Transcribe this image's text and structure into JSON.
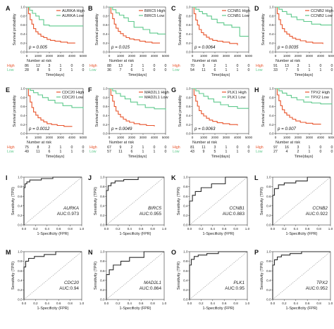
{
  "km_common": {
    "ylabel": "Survival probability",
    "xlabel": "Time(days)",
    "risk_title": "Number at risk",
    "y_ticks": [
      "0.0",
      "0.2",
      "0.4",
      "0.6",
      "0.8",
      "1.0"
    ],
    "x_ticks": [
      "0",
      "1000",
      "2000",
      "3000",
      "4000",
      "5000"
    ],
    "high_row": "High",
    "low_row": "Low",
    "high_color": "#e8542b",
    "low_color": "#5ec98c"
  },
  "roc_common": {
    "ylabel": "Sensitivity (TPR)",
    "xlabel": "1-Specificity (FPR)",
    "ticks": [
      "0.0",
      "0.2",
      "0.4",
      "0.6",
      "0.8",
      "1.0"
    ],
    "curve_color": "#2b2b2b",
    "diag_color": "#9a9a9a"
  },
  "chart_data": [
    {
      "panel": "A",
      "type": "line",
      "gene": "AURKA",
      "legend": [
        "AURKA High",
        "AURKA Low"
      ],
      "p_value": "p = 0.005",
      "xlim": [
        0,
        5000
      ],
      "ylim": [
        0,
        1
      ],
      "risk_high": [
        "86",
        "12",
        "3",
        "1",
        "0",
        "0"
      ],
      "risk_low": [
        "28",
        "8",
        "5",
        "2",
        "1",
        "0"
      ],
      "series": [
        {
          "group": "High",
          "x": [
            0,
            150,
            300,
            450,
            600,
            800,
            1000,
            1250,
            1500,
            1800,
            2100,
            2500,
            3000,
            3600,
            4300
          ],
          "y": [
            1,
            0.85,
            0.72,
            0.62,
            0.52,
            0.45,
            0.4,
            0.35,
            0.32,
            0.28,
            0.26,
            0.24,
            0.22,
            0.2,
            0.2
          ]
        },
        {
          "group": "Low",
          "x": [
            0,
            250,
            500,
            800,
            1100,
            1500,
            2000,
            5000
          ],
          "y": [
            1,
            0.93,
            0.86,
            0.8,
            0.72,
            0.6,
            0.58,
            0.58
          ]
        }
      ]
    },
    {
      "panel": "B",
      "type": "line",
      "gene": "BIRC5",
      "legend": [
        "BIRC5 High",
        "BIRC5 Low"
      ],
      "p_value": "p = 0.015",
      "xlim": [
        0,
        5000
      ],
      "ylim": [
        0,
        1
      ],
      "risk_high": [
        "88",
        "13",
        "2",
        "1",
        "0",
        "0"
      ],
      "risk_low": [
        "36",
        "7",
        "6",
        "1",
        "0",
        "0"
      ],
      "series": [
        {
          "group": "High",
          "x": [
            0,
            150,
            300,
            450,
            600,
            800,
            1000,
            1250,
            1500,
            1800,
            2200,
            2700,
            3200,
            3800,
            4500
          ],
          "y": [
            1,
            0.86,
            0.74,
            0.62,
            0.53,
            0.46,
            0.41,
            0.36,
            0.32,
            0.29,
            0.27,
            0.24,
            0.22,
            0.2,
            0.2
          ]
        },
        {
          "group": "Low",
          "x": [
            0,
            300,
            600,
            900,
            1300,
            1700,
            2200,
            3000,
            3600,
            4300,
            5000
          ],
          "y": [
            1,
            0.94,
            0.87,
            0.82,
            0.76,
            0.68,
            0.55,
            0.5,
            0.42,
            0.4,
            0.4
          ]
        }
      ]
    },
    {
      "panel": "C",
      "type": "line",
      "gene": "CCNB1",
      "legend": [
        "CCNB1 High",
        "CCNB1 Low"
      ],
      "p_value": "p = 0.0064",
      "xlim": [
        0,
        5000
      ],
      "ylim": [
        0,
        1
      ],
      "risk_high": [
        "70",
        "9",
        "2",
        "1",
        "0",
        "0"
      ],
      "risk_low": [
        "54",
        "11",
        "6",
        "1",
        "1",
        "0"
      ],
      "series": [
        {
          "group": "High",
          "x": [
            0,
            150,
            300,
            450,
            600,
            800,
            1000,
            1250,
            1500,
            1800,
            2200,
            2700,
            3300,
            4000
          ],
          "y": [
            1,
            0.85,
            0.71,
            0.6,
            0.5,
            0.43,
            0.38,
            0.33,
            0.29,
            0.26,
            0.24,
            0.22,
            0.19,
            0.15
          ]
        },
        {
          "group": "Low",
          "x": [
            0,
            300,
            600,
            900,
            1300,
            1700,
            2200,
            2800,
            3500,
            4200,
            5000
          ],
          "y": [
            1,
            0.95,
            0.9,
            0.85,
            0.8,
            0.73,
            0.65,
            0.6,
            0.55,
            0.35,
            0.35
          ]
        }
      ]
    },
    {
      "panel": "D",
      "type": "line",
      "gene": "CCNB2",
      "legend": [
        "CCNB2 High",
        "CCNB2 Low"
      ],
      "p_value": "p = 0.0035",
      "xlim": [
        0,
        5000
      ],
      "ylim": [
        0,
        1
      ],
      "risk_high": [
        "91",
        "13",
        "3",
        "1",
        "0",
        "0"
      ],
      "risk_low": [
        "33",
        "7",
        "5",
        "1",
        "1",
        "0"
      ],
      "series": [
        {
          "group": "High",
          "x": [
            0,
            150,
            300,
            450,
            600,
            800,
            1000,
            1250,
            1500,
            1800,
            2200,
            2700,
            3300,
            4200
          ],
          "y": [
            1,
            0.85,
            0.72,
            0.61,
            0.52,
            0.45,
            0.4,
            0.35,
            0.31,
            0.28,
            0.25,
            0.22,
            0.2,
            0.18
          ]
        },
        {
          "group": "Low",
          "x": [
            0,
            300,
            600,
            1000,
            1400,
            1900,
            2500,
            3200,
            4000,
            5000
          ],
          "y": [
            1,
            0.95,
            0.9,
            0.84,
            0.78,
            0.72,
            0.68,
            0.62,
            0.6,
            0.6
          ]
        }
      ]
    },
    {
      "panel": "E",
      "type": "line",
      "gene": "CDC20",
      "legend": [
        "CDC20 High",
        "CDC20 Low"
      ],
      "p_value": "p = 0.0012",
      "xlim": [
        0,
        5000
      ],
      "ylim": [
        0,
        1
      ],
      "risk_high": [
        "75",
        "8",
        "2",
        "1",
        "0",
        "0"
      ],
      "risk_low": [
        "49",
        "11",
        "6",
        "1",
        "1",
        "0"
      ],
      "series": [
        {
          "group": "High",
          "x": [
            0,
            150,
            300,
            450,
            600,
            800,
            1000,
            1250,
            1500,
            1800,
            2200,
            2700,
            3300,
            4000
          ],
          "y": [
            1,
            0.84,
            0.7,
            0.58,
            0.48,
            0.41,
            0.35,
            0.3,
            0.26,
            0.22,
            0.2,
            0.18,
            0.16,
            0.15
          ]
        },
        {
          "group": "Low",
          "x": [
            0,
            300,
            600,
            1000,
            1400,
            1900,
            2500,
            3200,
            4000,
            5000
          ],
          "y": [
            1,
            0.96,
            0.91,
            0.86,
            0.8,
            0.74,
            0.68,
            0.62,
            0.58,
            0.55
          ]
        }
      ]
    },
    {
      "panel": "F",
      "type": "line",
      "gene": "MAD2L1",
      "legend": [
        "MAD2L1 High",
        "MAD2L1 Low"
      ],
      "p_value": "p = 0.0049",
      "xlim": [
        0,
        5000
      ],
      "ylim": [
        0,
        1
      ],
      "risk_high": [
        "67",
        "9",
        "2",
        "1",
        "0",
        "0"
      ],
      "risk_low": [
        "57",
        "11",
        "6",
        "1",
        "1",
        "0"
      ],
      "series": [
        {
          "group": "High",
          "x": [
            0,
            150,
            300,
            450,
            600,
            800,
            1000,
            1250,
            1500,
            1800,
            2200,
            2700,
            3300,
            4000
          ],
          "y": [
            1,
            0.85,
            0.72,
            0.6,
            0.5,
            0.43,
            0.37,
            0.32,
            0.28,
            0.25,
            0.22,
            0.2,
            0.18,
            0.16
          ]
        },
        {
          "group": "Low",
          "x": [
            0,
            300,
            600,
            1000,
            1400,
            1900,
            2500,
            3200,
            4000,
            5000
          ],
          "y": [
            1,
            0.95,
            0.89,
            0.83,
            0.77,
            0.7,
            0.64,
            0.58,
            0.55,
            0.52
          ]
        }
      ]
    },
    {
      "panel": "G",
      "type": "line",
      "gene": "PLK1",
      "legend": [
        "PLK1 High",
        "PLK1 Low"
      ],
      "p_value": "p = 0.0063",
      "xlim": [
        0,
        5000
      ],
      "ylim": [
        0,
        1
      ],
      "risk_high": [
        "81",
        "11",
        "3",
        "1",
        "0",
        "0"
      ],
      "risk_low": [
        "43",
        "9",
        "5",
        "1",
        "1",
        "0"
      ],
      "series": [
        {
          "group": "High",
          "x": [
            0,
            150,
            300,
            450,
            600,
            800,
            1000,
            1250,
            1500,
            1800,
            2200,
            2700,
            3300,
            4000
          ],
          "y": [
            1,
            0.85,
            0.72,
            0.61,
            0.51,
            0.44,
            0.39,
            0.34,
            0.3,
            0.27,
            0.24,
            0.22,
            0.2,
            0.18
          ]
        },
        {
          "group": "Low",
          "x": [
            0,
            300,
            600,
            1000,
            1400,
            1900,
            2500,
            3200,
            4000,
            5000
          ],
          "y": [
            1,
            0.95,
            0.89,
            0.83,
            0.77,
            0.7,
            0.64,
            0.6,
            0.56,
            0.55
          ]
        }
      ]
    },
    {
      "panel": "H",
      "type": "line",
      "gene": "TPX2",
      "legend": [
        "TPX2 High",
        "TPX2 Low"
      ],
      "p_value": "p = 0.007",
      "xlim": [
        0,
        5000
      ],
      "ylim": [
        0,
        1
      ],
      "risk_high": [
        "97",
        "16",
        "3",
        "1",
        "0",
        "0"
      ],
      "risk_low": [
        "27",
        "4",
        "2",
        "1",
        "0",
        "0"
      ],
      "series": [
        {
          "group": "High",
          "x": [
            0,
            150,
            300,
            450,
            600,
            800,
            1000,
            1250,
            1500,
            1800,
            2200,
            2700,
            3300,
            4000
          ],
          "y": [
            1,
            0.86,
            0.73,
            0.62,
            0.53,
            0.46,
            0.41,
            0.36,
            0.32,
            0.28,
            0.25,
            0.23,
            0.21,
            0.2
          ]
        },
        {
          "group": "Low",
          "x": [
            0,
            300,
            600,
            1000,
            1400,
            1900,
            2500,
            3200,
            4000,
            5000
          ],
          "y": [
            1,
            0.95,
            0.9,
            0.85,
            0.8,
            0.75,
            0.7,
            0.68,
            0.66,
            0.65
          ]
        }
      ]
    },
    {
      "panel": "I",
      "type": "line",
      "gene": "AURKA",
      "auc": "AUC:0.973",
      "xlim": [
        0,
        1
      ],
      "ylim": [
        0,
        1
      ],
      "fpr": [
        0,
        0,
        0.02,
        0.02,
        0.05,
        0.05,
        0.1,
        0.1,
        0.3,
        0.3,
        0.5,
        0.5,
        1
      ],
      "tpr": [
        0,
        0.78,
        0.78,
        0.86,
        0.86,
        0.9,
        0.9,
        0.94,
        0.94,
        0.97,
        0.97,
        1,
        1
      ]
    },
    {
      "panel": "J",
      "type": "line",
      "gene": "BIRC5",
      "auc": "AUC:0.955",
      "xlim": [
        0,
        1
      ],
      "ylim": [
        0,
        1
      ],
      "fpr": [
        0,
        0,
        0.03,
        0.03,
        0.08,
        0.08,
        0.15,
        0.15,
        0.3,
        0.3,
        0.55,
        0.55,
        1
      ],
      "tpr": [
        0,
        0.72,
        0.72,
        0.82,
        0.82,
        0.88,
        0.88,
        0.92,
        0.92,
        0.95,
        0.95,
        1,
        1
      ]
    },
    {
      "panel": "K",
      "type": "line",
      "gene": "CCNB1",
      "auc": "AUC:0.883",
      "xlim": [
        0,
        1
      ],
      "ylim": [
        0,
        1
      ],
      "fpr": [
        0,
        0,
        0.05,
        0.05,
        0.1,
        0.1,
        0.2,
        0.2,
        0.38,
        0.38,
        0.62,
        0.62,
        1
      ],
      "tpr": [
        0,
        0.5,
        0.5,
        0.62,
        0.62,
        0.7,
        0.7,
        0.78,
        0.78,
        0.86,
        0.86,
        1,
        1
      ]
    },
    {
      "panel": "L",
      "type": "line",
      "gene": "CCNB2",
      "auc": "AUC:0.922",
      "xlim": [
        0,
        1
      ],
      "ylim": [
        0,
        1
      ],
      "fpr": [
        0,
        0,
        0.03,
        0.03,
        0.1,
        0.1,
        0.2,
        0.2,
        0.4,
        0.4,
        0.6,
        0.6,
        1
      ],
      "tpr": [
        0,
        0.62,
        0.62,
        0.76,
        0.76,
        0.84,
        0.84,
        0.88,
        0.88,
        0.92,
        0.92,
        1,
        1
      ]
    },
    {
      "panel": "M",
      "type": "line",
      "gene": "CDC20",
      "auc": "AUC:0.94",
      "xlim": [
        0,
        1
      ],
      "ylim": [
        0,
        1
      ],
      "fpr": [
        0,
        0,
        0.03,
        0.03,
        0.08,
        0.08,
        0.18,
        0.18,
        0.35,
        0.35,
        0.55,
        0.55,
        1
      ],
      "tpr": [
        0,
        0.68,
        0.68,
        0.8,
        0.8,
        0.86,
        0.86,
        0.9,
        0.9,
        0.94,
        0.94,
        1,
        1
      ]
    },
    {
      "panel": "N",
      "type": "line",
      "gene": "MAD2L1",
      "auc": "AUC:0.864",
      "xlim": [
        0,
        1
      ],
      "ylim": [
        0,
        1
      ],
      "fpr": [
        0,
        0,
        0.05,
        0.05,
        0.12,
        0.12,
        0.25,
        0.25,
        0.4,
        0.4,
        0.65,
        0.65,
        1
      ],
      "tpr": [
        0,
        0.52,
        0.52,
        0.62,
        0.62,
        0.72,
        0.72,
        0.8,
        0.8,
        0.88,
        0.88,
        1,
        1
      ]
    },
    {
      "panel": "O",
      "type": "line",
      "gene": "PLK1",
      "auc": "AUC:0.95",
      "xlim": [
        0,
        1
      ],
      "ylim": [
        0,
        1
      ],
      "fpr": [
        0,
        0,
        0.03,
        0.03,
        0.08,
        0.08,
        0.15,
        0.15,
        0.3,
        0.3,
        0.5,
        0.5,
        1
      ],
      "tpr": [
        0,
        0.72,
        0.72,
        0.84,
        0.84,
        0.9,
        0.9,
        0.93,
        0.93,
        0.96,
        0.96,
        1,
        1
      ]
    },
    {
      "panel": "P",
      "type": "line",
      "gene": "TPX2",
      "auc": "AUC:0.952",
      "xlim": [
        0,
        1
      ],
      "ylim": [
        0,
        1
      ],
      "fpr": [
        0,
        0,
        0.03,
        0.03,
        0.08,
        0.08,
        0.15,
        0.15,
        0.3,
        0.3,
        0.5,
        0.5,
        1
      ],
      "tpr": [
        0,
        0.72,
        0.72,
        0.83,
        0.83,
        0.89,
        0.89,
        0.93,
        0.93,
        0.96,
        0.96,
        1,
        1
      ]
    }
  ]
}
